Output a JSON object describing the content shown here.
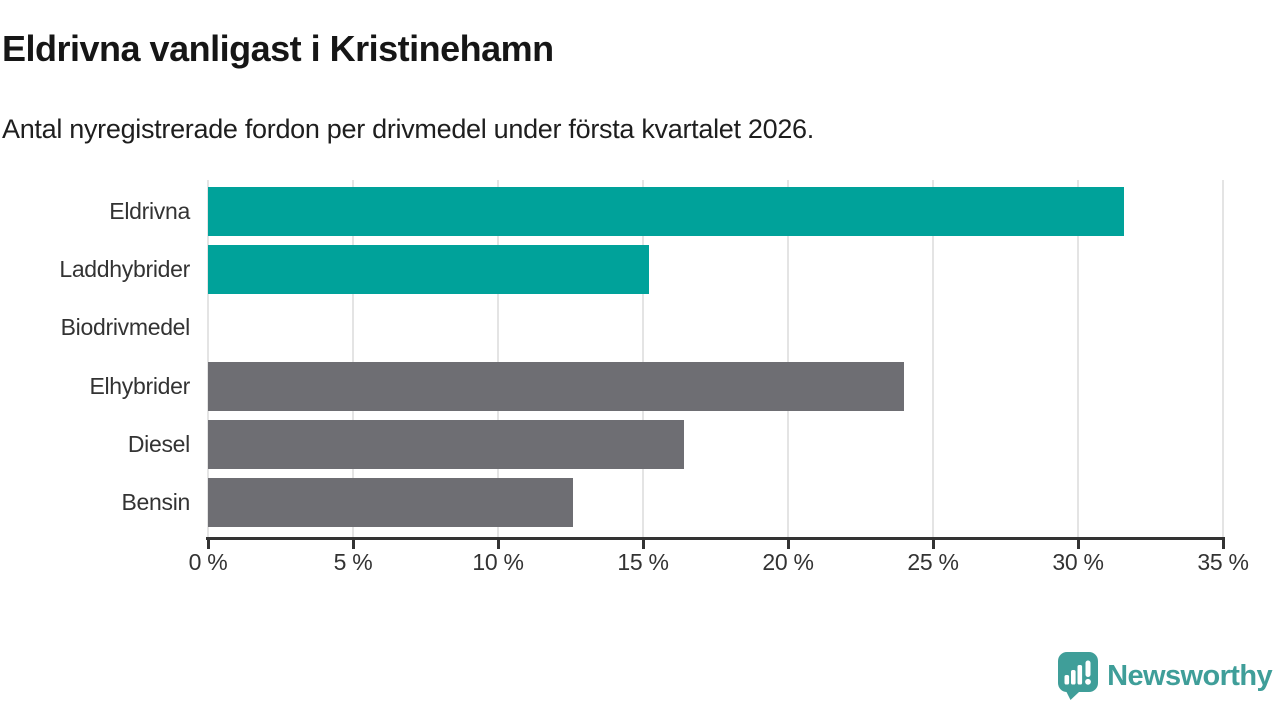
{
  "header": {
    "title": "Eldrivna vanligast i Kristinehamn",
    "subtitle": "Antal nyregistrerade fordon per drivmedel under första kvartalet 2026."
  },
  "chart_data": {
    "type": "bar",
    "orientation": "horizontal",
    "title": "Eldrivna vanligast i Kristinehamn",
    "subtitle": "Antal nyregistrerade fordon per drivmedel under första kvartalet 2026.",
    "xlabel": "",
    "ylabel": "",
    "categories": [
      "Eldrivna",
      "Laddhybrider",
      "Biodrivmedel",
      "Elhybrider",
      "Diesel",
      "Bensin"
    ],
    "values": [
      31.6,
      15.2,
      0,
      24.0,
      16.4,
      12.6
    ],
    "bar_colors": [
      "#00a29a",
      "#00a29a",
      "#00a29a",
      "#6e6e73",
      "#6e6e73",
      "#6e6e73"
    ],
    "xlim": [
      0,
      35
    ],
    "x_ticks": [
      0,
      5,
      10,
      15,
      20,
      25,
      30,
      35
    ],
    "x_tick_labels": [
      "0 %",
      "5 %",
      "10 %",
      "15 %",
      "20 %",
      "25 %",
      "30 %",
      "35 %"
    ],
    "grid": true,
    "legend": false
  },
  "colors": {
    "accent_teal": "#00a29a",
    "neutral_gray": "#6e6e73",
    "gridline": "#e4e4e4",
    "axis": "#333333",
    "logo_teal": "#3f9e99"
  },
  "branding": {
    "logo_text": "Newsworthy",
    "logo_icon": "speech-bubble-bar-chart-exclamation"
  }
}
